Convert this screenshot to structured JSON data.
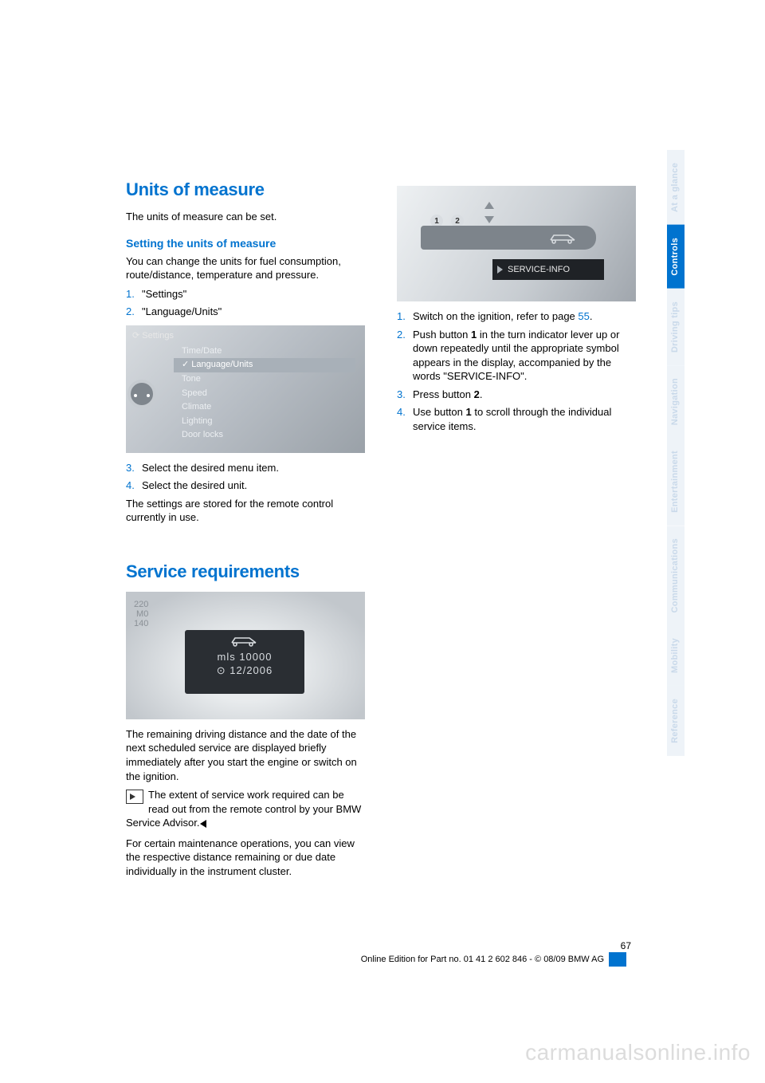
{
  "page": {
    "number": "67",
    "footer": "Online Edition for Part no. 01 41 2 602 846 - © 08/09 BMW AG",
    "watermark": "carmanualsonline.info"
  },
  "tabs": {
    "items": [
      {
        "label": "At a glance",
        "active": false
      },
      {
        "label": "Controls",
        "active": true
      },
      {
        "label": "Driving tips",
        "active": false
      },
      {
        "label": "Navigation",
        "active": false
      },
      {
        "label": "Entertainment",
        "active": false
      },
      {
        "label": "Communications",
        "active": false
      },
      {
        "label": "Mobility",
        "active": false
      },
      {
        "label": "Reference",
        "active": false
      }
    ]
  },
  "left": {
    "h1": "Units of measure",
    "intro": "The units of measure can be set.",
    "sub1": "Setting the units of measure",
    "sub1_p": "You can change the units for fuel consumption, route/distance, temperature and pressure.",
    "steps_a": [
      {
        "n": "1.",
        "t": "\"Settings\""
      },
      {
        "n": "2.",
        "t": "\"Language/Units\""
      }
    ],
    "fig1": {
      "header": "⟳  Settings",
      "menu": [
        "Time/Date",
        "Language/Units",
        "Tone",
        "Speed",
        "Climate",
        "Lighting",
        "Door locks"
      ],
      "selected_index": 1
    },
    "steps_b": [
      {
        "n": "3.",
        "t": "Select the desired menu item."
      },
      {
        "n": "4.",
        "t": "Select the desired unit."
      }
    ],
    "p_after": "The settings are stored for the remote control currently in use.",
    "h2": "Service requirements",
    "fig2": {
      "top_labels": "220\nM0\n140",
      "line1": "mls   10000",
      "line2": "⊙   12/2006"
    },
    "p_service1": "The remaining driving distance and the date of the next scheduled service are displayed briefly immediately after you start the engine or switch on the ignition.",
    "note": "The extent of service work required can be read out from the remote control by your BMW Service Advisor.",
    "p_service2": "For certain maintenance operations, you can view the respective distance remaining or due date individually in the instrument cluster."
  },
  "right": {
    "fig3": {
      "display": "SERVICE-INFO",
      "num1": "1",
      "num2": "2"
    },
    "steps": [
      {
        "n": "1.",
        "html": "Switch on the ignition, refer to page <span class=\"link\">55</span>."
      },
      {
        "n": "2.",
        "html": "Push button <b>1</b> in the turn indicator lever up or down repeatedly until the appropriate symbol appears in the display, accompanied by the words \"SERVICE-INFO\"."
      },
      {
        "n": "3.",
        "html": "Press button <b>2</b>."
      },
      {
        "n": "4.",
        "html": "Use button <b>1</b> to scroll through the individual service items."
      }
    ]
  },
  "colors": {
    "accent": "#0073cf",
    "tab_inactive_bg": "#eef3f8",
    "tab_inactive_fg": "#c9d9ea",
    "watermark": "#dcdcdc"
  }
}
